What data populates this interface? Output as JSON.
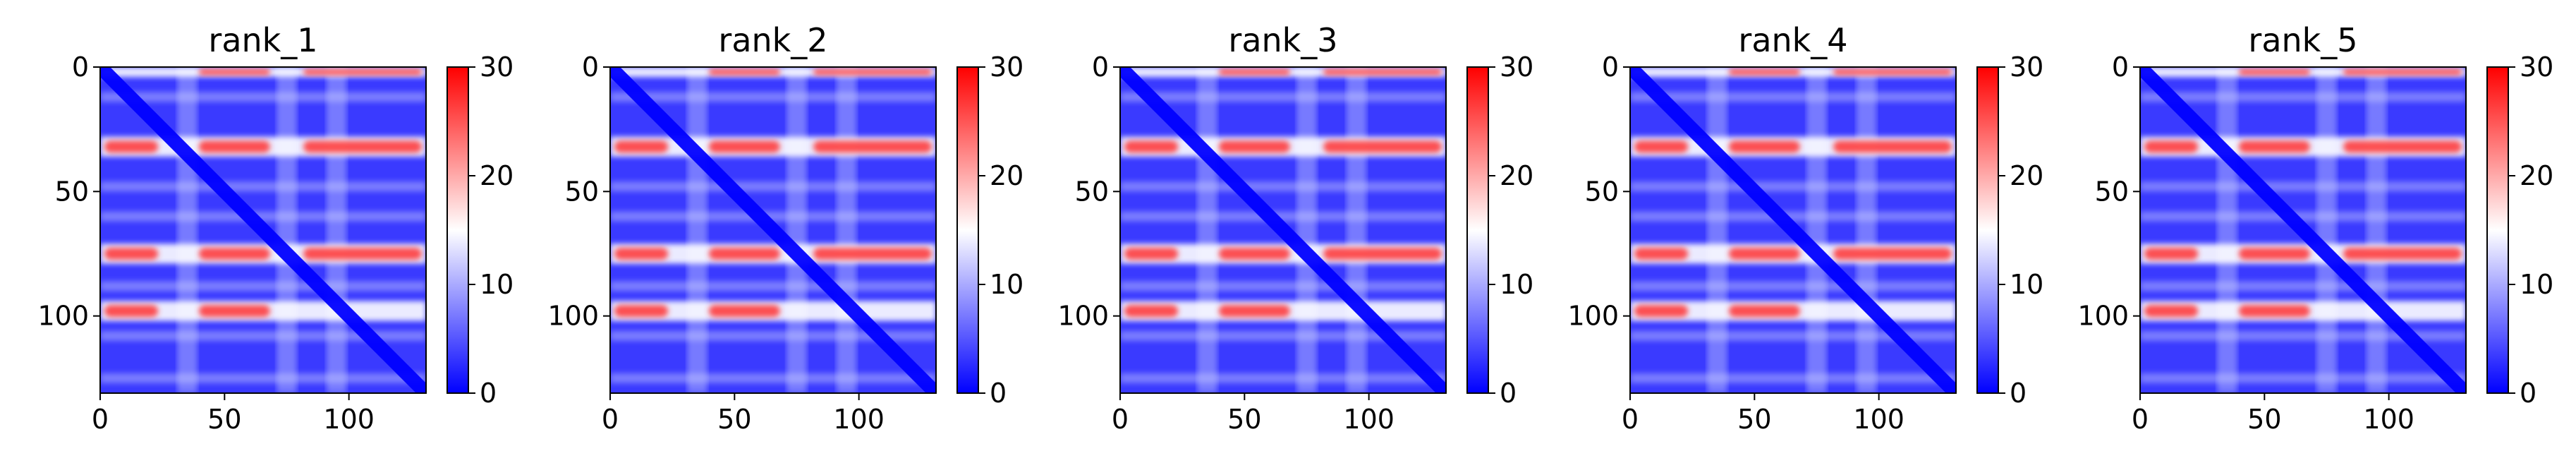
{
  "chart_data": [
    {
      "type": "heatmap",
      "title": "rank_1",
      "xlim": [
        0,
        131
      ],
      "ylim": [
        131,
        0
      ],
      "xticks": [
        0,
        50,
        100
      ],
      "yticks": [
        0,
        50,
        100
      ],
      "colorbar": {
        "ticks": [
          0,
          10,
          20,
          30
        ],
        "range": [
          0,
          30
        ]
      },
      "colormap": [
        "#0000ff",
        "#ffffff",
        "#ff0000"
      ],
      "red_bands_rows": [
        0,
        32,
        75,
        98
      ],
      "light_bands_cols": [
        35,
        75,
        95
      ]
    },
    {
      "type": "heatmap",
      "title": "rank_2",
      "xlim": [
        0,
        131
      ],
      "ylim": [
        131,
        0
      ],
      "xticks": [
        0,
        50,
        100
      ],
      "yticks": [
        0,
        50,
        100
      ],
      "colorbar": {
        "ticks": [
          0,
          10,
          20,
          30
        ],
        "range": [
          0,
          30
        ]
      },
      "colormap": [
        "#0000ff",
        "#ffffff",
        "#ff0000"
      ],
      "red_bands_rows": [
        0,
        32,
        75,
        98
      ],
      "light_bands_cols": [
        35,
        75,
        95
      ]
    },
    {
      "type": "heatmap",
      "title": "rank_3",
      "xlim": [
        0,
        131
      ],
      "ylim": [
        131,
        0
      ],
      "xticks": [
        0,
        50,
        100
      ],
      "yticks": [
        0,
        50,
        100
      ],
      "colorbar": {
        "ticks": [
          0,
          10,
          20,
          30
        ],
        "range": [
          0,
          30
        ]
      },
      "colormap": [
        "#0000ff",
        "#ffffff",
        "#ff0000"
      ],
      "red_bands_rows": [
        0,
        32,
        75,
        98
      ],
      "light_bands_cols": [
        35,
        75,
        95
      ]
    },
    {
      "type": "heatmap",
      "title": "rank_4",
      "xlim": [
        0,
        131
      ],
      "ylim": [
        131,
        0
      ],
      "xticks": [
        0,
        50,
        100
      ],
      "yticks": [
        0,
        50,
        100
      ],
      "colorbar": {
        "ticks": [
          0,
          10,
          20,
          30
        ],
        "range": [
          0,
          30
        ]
      },
      "colormap": [
        "#0000ff",
        "#ffffff",
        "#ff0000"
      ],
      "red_bands_rows": [
        0,
        32,
        75,
        98
      ],
      "light_bands_cols": [
        35,
        75,
        95
      ]
    },
    {
      "type": "heatmap",
      "title": "rank_5",
      "xlim": [
        0,
        131
      ],
      "ylim": [
        131,
        0
      ],
      "xticks": [
        0,
        50,
        100
      ],
      "yticks": [
        0,
        50,
        100
      ],
      "colorbar": {
        "ticks": [
          0,
          10,
          20,
          30
        ],
        "range": [
          0,
          30
        ]
      },
      "colormap": [
        "#0000ff",
        "#ffffff",
        "#ff0000"
      ],
      "red_bands_rows": [
        0,
        32,
        75,
        98
      ],
      "light_bands_cols": [
        35,
        75,
        95
      ]
    }
  ]
}
